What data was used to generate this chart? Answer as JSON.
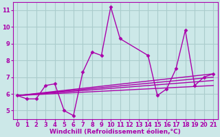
{
  "background_color": "#cce8e8",
  "grid_color": "#aacccc",
  "line_color": "#aa00aa",
  "xlim": [
    -0.5,
    21.5
  ],
  "ylim": [
    4.5,
    11.5
  ],
  "xticks": [
    0,
    1,
    2,
    3,
    4,
    5,
    6,
    7,
    8,
    9,
    10,
    11,
    12,
    13,
    14,
    15,
    16,
    17,
    18,
    19,
    20,
    21
  ],
  "yticks": [
    5,
    6,
    7,
    8,
    9,
    10,
    11
  ],
  "xlabel": "Windchill (Refroidissement éolien,°C)",
  "series0_x": [
    0,
    1,
    2,
    3,
    4,
    5,
    6,
    7,
    8,
    9,
    10,
    11,
    14,
    15,
    16,
    17,
    18,
    19,
    20,
    21
  ],
  "series0_y": [
    5.9,
    5.7,
    5.7,
    6.5,
    6.6,
    5.0,
    4.7,
    7.3,
    8.5,
    8.3,
    11.2,
    9.3,
    8.3,
    5.9,
    6.3,
    7.5,
    9.8,
    6.5,
    7.0,
    7.2
  ],
  "trend_lines": [
    {
      "x": [
        0,
        21
      ],
      "y": [
        5.9,
        7.2
      ]
    },
    {
      "x": [
        0,
        21
      ],
      "y": [
        5.9,
        7.0
      ]
    },
    {
      "x": [
        0,
        21
      ],
      "y": [
        5.9,
        6.8
      ]
    },
    {
      "x": [
        0,
        21
      ],
      "y": [
        5.9,
        6.5
      ]
    }
  ],
  "marker_size": 2.5,
  "line_width": 1.0,
  "font_size_label": 6.5,
  "font_size_tick": 6.0
}
